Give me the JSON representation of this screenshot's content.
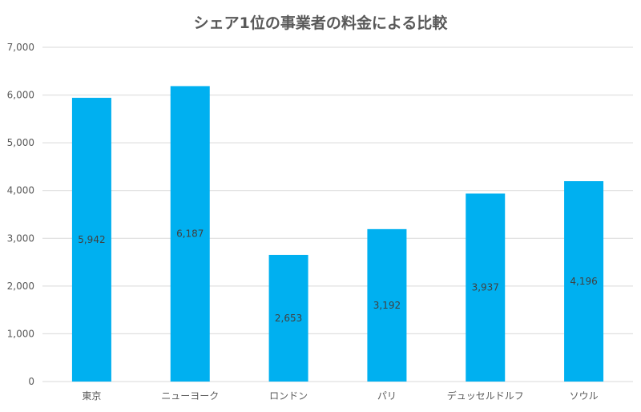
{
  "chart_data": {
    "type": "bar",
    "title": "シェア1位の事業者の料金による比較",
    "categories": [
      "東京",
      "ニューヨーク",
      "ロンドン",
      "パリ",
      "デュッセルドルフ",
      "ソウル"
    ],
    "values": [
      5942,
      6187,
      2653,
      3192,
      3937,
      4196
    ],
    "data_labels": [
      "5,942",
      "6,187",
      "2,653",
      "3,192",
      "3,937",
      "4,196"
    ],
    "y_ticks": [
      "0",
      "1,000",
      "2,000",
      "3,000",
      "4,000",
      "5,000",
      "6,000",
      "7,000"
    ],
    "ylim": [
      0,
      7000
    ],
    "grid": true,
    "legend": "none",
    "bar_color": "#00B0F0",
    "grid_color": "#D9D9D9"
  }
}
